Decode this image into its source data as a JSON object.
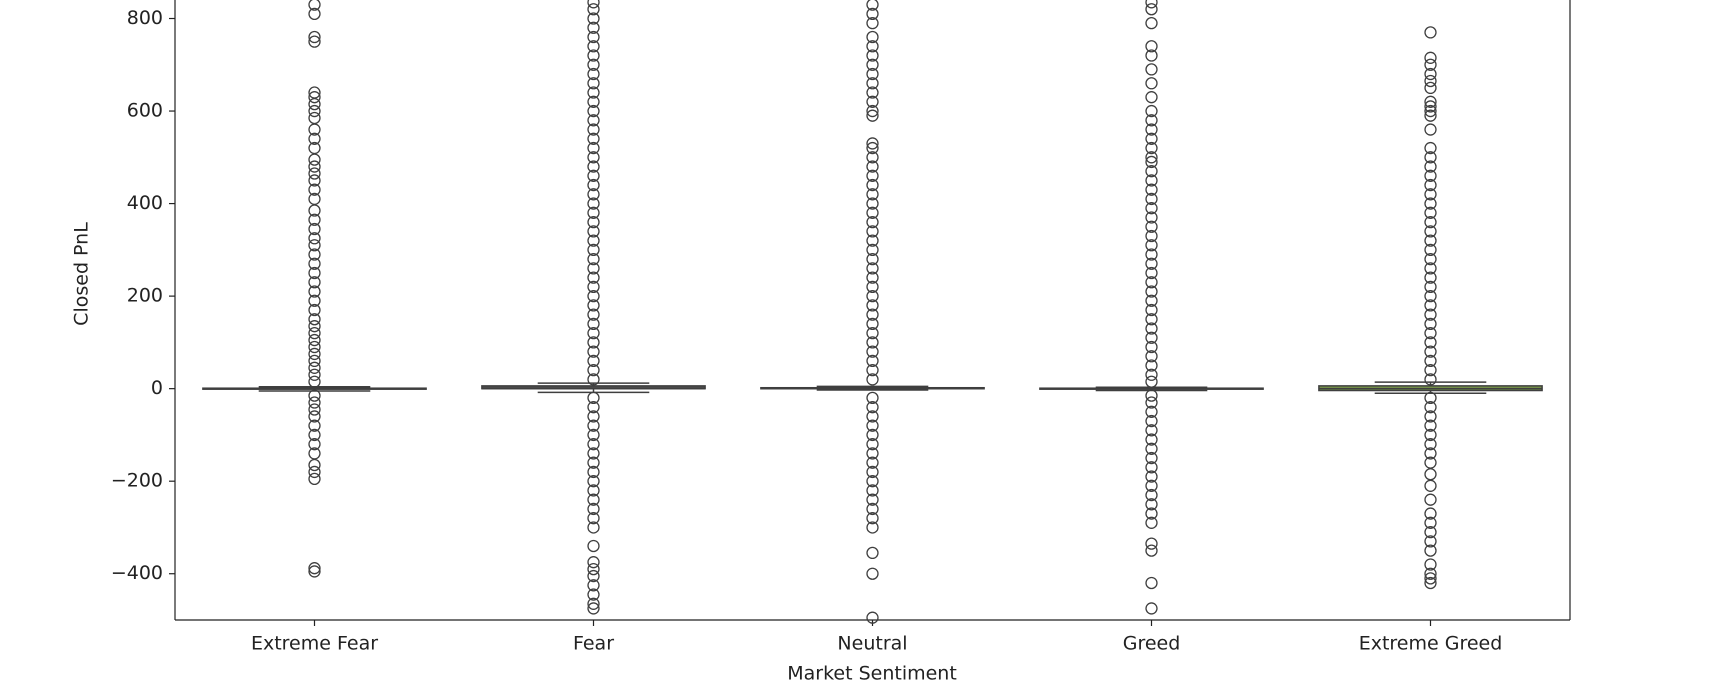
{
  "chart_data": {
    "type": "box",
    "xlabel": "Market Sentiment",
    "ylabel": "Closed PnL",
    "categories": [
      "Extreme Fear",
      "Fear",
      "Neutral",
      "Greed",
      "Extreme Greed"
    ],
    "colors": [
      "#7f7f7f",
      "#4d4d4d",
      "#3a3a3a",
      "#6b6b6b",
      "#7a9a4a"
    ],
    "ylim": [
      -500,
      840
    ],
    "yticks": [
      {
        "value": -400,
        "label": "−400"
      },
      {
        "value": -200,
        "label": "−200"
      },
      0,
      200,
      400,
      600,
      800
    ],
    "boxes": [
      {
        "whislo": -5,
        "q1": 0,
        "med": 0,
        "q3": 1,
        "whishi": 4,
        "fliers": [
          -395,
          -388,
          -195,
          -180,
          -165,
          -140,
          -120,
          -100,
          -80,
          -60,
          -45,
          -30,
          -15,
          15,
          30,
          45,
          60,
          75,
          90,
          105,
          120,
          135,
          150,
          170,
          190,
          210,
          230,
          250,
          270,
          290,
          310,
          325,
          345,
          365,
          385,
          410,
          430,
          450,
          465,
          480,
          495,
          520,
          540,
          560,
          585,
          600,
          615,
          630,
          640,
          750,
          760,
          810,
          830
        ]
      },
      {
        "whislo": -8,
        "q1": 0,
        "med": 0,
        "q3": 6,
        "whishi": 12,
        "fliers": [
          -475,
          -465,
          -445,
          -425,
          -405,
          -390,
          -375,
          -340,
          -300,
          -280,
          -260,
          -240,
          -220,
          -200,
          -180,
          -160,
          -140,
          -120,
          -100,
          -80,
          -60,
          -40,
          -20,
          20,
          40,
          60,
          80,
          100,
          120,
          140,
          160,
          180,
          200,
          220,
          240,
          260,
          280,
          300,
          320,
          340,
          360,
          380,
          400,
          420,
          440,
          460,
          480,
          500,
          520,
          540,
          560,
          580,
          600,
          620,
          640,
          660,
          680,
          700,
          720,
          740,
          760,
          780,
          800,
          820,
          835
        ]
      },
      {
        "whislo": -3,
        "q1": 0,
        "med": 0,
        "q3": 2,
        "whishi": 5,
        "fliers": [
          -495,
          -400,
          -355,
          -300,
          -280,
          -260,
          -240,
          -220,
          -200,
          -180,
          -160,
          -140,
          -120,
          -100,
          -80,
          -60,
          -40,
          -20,
          20,
          40,
          60,
          80,
          100,
          120,
          140,
          160,
          180,
          200,
          220,
          240,
          260,
          280,
          300,
          320,
          340,
          360,
          380,
          400,
          420,
          440,
          460,
          480,
          500,
          520,
          530,
          590,
          600,
          620,
          640,
          660,
          680,
          700,
          720,
          740,
          760,
          790,
          810,
          830
        ]
      },
      {
        "whislo": -4,
        "q1": 0,
        "med": 0,
        "q3": 1,
        "whishi": 3,
        "fliers": [
          -475,
          -420,
          -350,
          -335,
          -290,
          -270,
          -250,
          -230,
          -210,
          -190,
          -170,
          -150,
          -130,
          -110,
          -90,
          -70,
          -50,
          -30,
          -15,
          15,
          30,
          50,
          70,
          90,
          110,
          130,
          150,
          170,
          190,
          210,
          230,
          250,
          270,
          290,
          310,
          330,
          350,
          370,
          390,
          410,
          430,
          450,
          470,
          490,
          500,
          520,
          540,
          560,
          580,
          600,
          630,
          660,
          690,
          720,
          740,
          790,
          820,
          835
        ]
      },
      {
        "whislo": -10,
        "q1": -4,
        "med": 0,
        "q3": 6,
        "whishi": 14,
        "fliers": [
          -420,
          -410,
          -400,
          -380,
          -350,
          -330,
          -310,
          -290,
          -270,
          -240,
          -210,
          -185,
          -160,
          -140,
          -120,
          -100,
          -80,
          -60,
          -40,
          -20,
          20,
          40,
          60,
          80,
          100,
          120,
          140,
          160,
          180,
          200,
          220,
          240,
          260,
          280,
          300,
          320,
          340,
          360,
          380,
          400,
          420,
          440,
          460,
          480,
          500,
          520,
          560,
          590,
          600,
          610,
          620,
          650,
          665,
          680,
          700,
          715,
          770
        ]
      }
    ]
  }
}
